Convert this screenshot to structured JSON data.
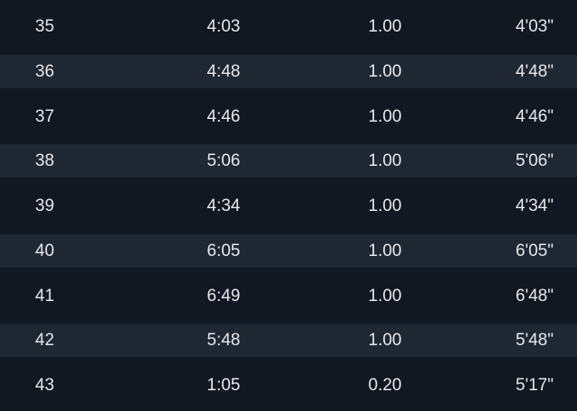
{
  "splits": [
    {
      "lap": "35",
      "time": "4:03",
      "distance": "1.00",
      "pace": "4'03\""
    },
    {
      "lap": "36",
      "time": "4:48",
      "distance": "1.00",
      "pace": "4'48\""
    },
    {
      "lap": "37",
      "time": "4:46",
      "distance": "1.00",
      "pace": "4'46\""
    },
    {
      "lap": "38",
      "time": "5:06",
      "distance": "1.00",
      "pace": "5'06\""
    },
    {
      "lap": "39",
      "time": "4:34",
      "distance": "1.00",
      "pace": "4'34\""
    },
    {
      "lap": "40",
      "time": "6:05",
      "distance": "1.00",
      "pace": "6'05\""
    },
    {
      "lap": "41",
      "time": "6:49",
      "distance": "1.00",
      "pace": "6'48\""
    },
    {
      "lap": "42",
      "time": "5:48",
      "distance": "1.00",
      "pace": "5'48\""
    },
    {
      "lap": "43",
      "time": "1:05",
      "distance": "0.20",
      "pace": "5'17\""
    }
  ],
  "colors": {
    "background": "#111822",
    "stripe": "#1f2733",
    "text": "#e6e8ec"
  }
}
